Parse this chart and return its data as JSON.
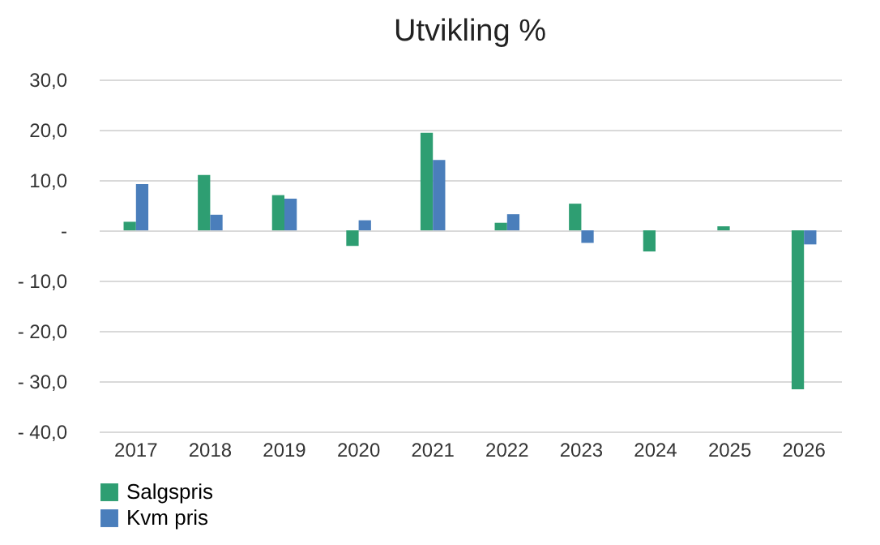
{
  "chart_data": {
    "type": "bar",
    "title": "Utvikling %",
    "categories": [
      "2017",
      "2018",
      "2019",
      "2020",
      "2021",
      "2022",
      "2023",
      "2024",
      "2025",
      "2026"
    ],
    "series": [
      {
        "name": "Salgspris",
        "color": "#2e9e72",
        "values": [
          1.7,
          11.0,
          7.0,
          -3.1,
          19.4,
          1.5,
          5.3,
          -4.2,
          0.8,
          -31.6
        ]
      },
      {
        "name": "Kvm pris",
        "color": "#4a7ebb",
        "values": [
          9.2,
          3.1,
          6.3,
          2.0,
          14.0,
          3.2,
          -2.5,
          0,
          0,
          -2.8
        ]
      }
    ],
    "ylim": [
      -40,
      30
    ],
    "yticks": [
      {
        "value": 30,
        "label": "30,0"
      },
      {
        "value": 20,
        "label": "20,0"
      },
      {
        "value": 10,
        "label": "10,0"
      },
      {
        "value": 0,
        "label": "-"
      },
      {
        "value": -10,
        "label": "- 10,0"
      },
      {
        "value": -20,
        "label": "- 20,0"
      },
      {
        "value": -30,
        "label": "- 30,0"
      },
      {
        "value": -40,
        "label": "- 40,0"
      }
    ],
    "grid": "y",
    "legend": "bottom"
  }
}
